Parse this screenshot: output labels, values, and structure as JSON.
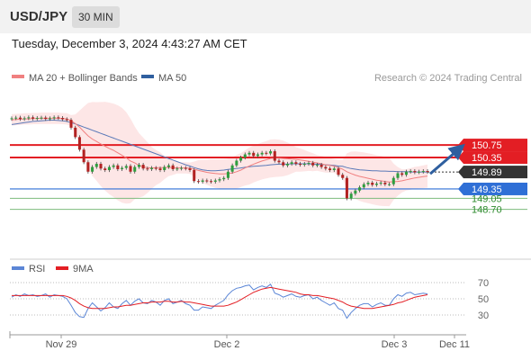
{
  "header": {
    "symbol": "USD/JPY",
    "interval": "30 MIN"
  },
  "datetime": "Tuesday, December 3, 2024 4:43:27 AM CET",
  "legend": {
    "items": [
      {
        "label": "MA 20 + Bollinger Bands",
        "color": "#f08080"
      },
      {
        "label": "MA 50",
        "color": "#2f5f9f"
      }
    ],
    "credit": "Research © 2024 Trading Central"
  },
  "chart_data": [
    {
      "type": "candlestick",
      "symbol": "USD/JPY",
      "x_labels": [
        "Nov 29",
        "Dec 2",
        "Dec 3",
        "Dec 11"
      ],
      "y_range": [
        147.2,
        152.5
      ],
      "levels": [
        {
          "label": "150.75",
          "value": 150.75,
          "kind": "resistance",
          "color": "#e31e24"
        },
        {
          "label": "150.35",
          "value": 150.35,
          "kind": "resistance",
          "color": "#e31e24"
        },
        {
          "label": "149.89",
          "value": 149.89,
          "kind": "last price",
          "color": "#333333"
        },
        {
          "label": "149.35",
          "value": 149.35,
          "kind": "pivot",
          "color": "#2f6fd6"
        },
        {
          "label": "149.05",
          "value": 149.05,
          "kind": "support",
          "color": "#2e8b2e"
        },
        {
          "label": "148.70",
          "value": 148.7,
          "kind": "support",
          "color": "#2e8b2e"
        }
      ],
      "closes": [
        151.6,
        151.62,
        151.58,
        151.6,
        151.63,
        151.59,
        151.61,
        151.62,
        151.58,
        151.6,
        151.63,
        151.61,
        151.57,
        151.55,
        151.3,
        151.0,
        150.6,
        150.2,
        149.9,
        150.05,
        150.15,
        150.0,
        149.95,
        150.05,
        150.1,
        149.98,
        150.02,
        150.08,
        149.9,
        150.05,
        150.12,
        150.0,
        149.98,
        150.02,
        150.0,
        149.95,
        150.05,
        150.1,
        149.98,
        150.0,
        150.02,
        150.0,
        149.95,
        149.6,
        149.58,
        149.62,
        149.6,
        149.58,
        149.62,
        149.66,
        149.7,
        149.9,
        150.1,
        150.25,
        150.35,
        150.45,
        150.5,
        150.4,
        150.45,
        150.5,
        150.48,
        150.55,
        150.25,
        150.2,
        150.1,
        150.15,
        150.2,
        150.15,
        150.12,
        150.15,
        150.18,
        150.1,
        150.12,
        150.05,
        150.0,
        149.95,
        150.0,
        149.8,
        149.7,
        149.05,
        149.2,
        149.3,
        149.4,
        149.5,
        149.55,
        149.48,
        149.52,
        149.55,
        149.5,
        149.5,
        149.7,
        149.85,
        149.8,
        149.9,
        149.92,
        149.88,
        149.9,
        149.92,
        149.89
      ],
      "series": [
        {
          "name": "MA 20 + Bollinger Bands",
          "values": [
            151.55,
            151.56,
            151.57,
            151.58,
            151.58,
            151.59,
            151.59,
            151.6,
            151.6,
            151.6,
            151.6,
            151.6,
            151.59,
            151.58,
            151.52,
            151.43,
            151.32,
            151.18,
            151.04,
            150.94,
            150.86,
            150.78,
            150.71,
            150.64,
            150.58,
            150.5,
            150.42,
            150.34,
            150.24,
            150.18,
            150.1,
            150.05,
            150.03,
            150.02,
            150.03,
            150.03,
            150.03,
            150.04,
            150.03,
            150.02,
            150.02,
            150.02,
            150.01,
            149.98,
            149.94,
            149.91,
            149.88,
            149.86,
            149.84,
            149.83,
            149.83,
            149.84,
            149.86,
            149.9,
            149.95,
            150.02,
            150.08,
            150.14,
            150.19,
            150.24,
            150.28,
            150.32,
            150.33,
            150.33,
            150.32,
            150.31,
            150.3,
            150.29,
            150.27,
            150.25,
            150.23,
            150.2,
            150.18,
            150.15,
            150.12,
            150.1,
            150.08,
            150.03,
            149.98,
            149.9,
            149.84,
            149.79,
            149.75,
            149.72,
            149.69,
            149.66,
            149.63,
            149.61,
            149.59,
            149.57,
            149.58,
            149.59,
            149.61,
            149.64,
            149.67,
            149.7,
            149.72,
            149.74,
            149.76
          ]
        },
        {
          "name": "MA 50",
          "values": [
            151.4,
            151.42,
            151.44,
            151.46,
            151.48,
            151.5,
            151.51,
            151.52,
            151.53,
            151.54,
            151.54,
            151.53,
            151.52,
            151.5,
            151.46,
            151.42,
            151.37,
            151.32,
            151.27,
            151.22,
            151.17,
            151.12,
            151.07,
            151.02,
            150.97,
            150.92,
            150.87,
            150.82,
            150.77,
            150.72,
            150.67,
            150.62,
            150.57,
            150.52,
            150.47,
            150.42,
            150.37,
            150.32,
            150.27,
            150.22,
            150.17,
            150.12,
            150.08,
            150.03,
            149.99,
            149.96,
            149.94,
            149.93,
            149.93,
            149.94,
            149.95,
            149.97,
            149.99,
            150.0,
            150.02,
            150.04,
            150.06,
            150.07,
            150.08,
            150.09,
            150.1,
            150.12,
            150.13,
            150.14,
            150.14,
            150.14,
            150.15,
            150.15,
            150.15,
            150.15,
            150.15,
            150.14,
            150.14,
            150.13,
            150.12,
            150.11,
            150.1,
            150.08,
            150.07,
            150.03,
            150.0,
            149.98,
            149.96,
            149.95,
            149.94,
            149.93,
            149.93,
            149.92,
            149.92,
            149.91,
            149.91,
            149.9,
            149.9,
            149.9,
            149.89,
            149.89,
            149.89,
            149.89,
            149.89
          ]
        }
      ]
    },
    {
      "type": "line",
      "title": "RSI",
      "y_range": [
        10,
        80
      ],
      "y_ticks": [
        70,
        50,
        30
      ],
      "series": [
        {
          "name": "RSI",
          "color": "#5b86d6",
          "values": [
            52,
            55,
            53,
            56,
            54,
            55,
            53,
            54,
            56,
            52,
            55,
            54,
            53,
            50,
            42,
            33,
            28,
            27,
            38,
            45,
            40,
            35,
            39,
            45,
            40,
            38,
            44,
            48,
            42,
            47,
            50,
            45,
            44,
            48,
            46,
            42,
            48,
            50,
            44,
            46,
            48,
            44,
            42,
            36,
            36,
            40,
            39,
            38,
            42,
            45,
            48,
            55,
            60,
            63,
            64,
            66,
            67,
            61,
            64,
            66,
            64,
            68,
            57,
            55,
            52,
            54,
            56,
            53,
            52,
            54,
            55,
            50,
            52,
            48,
            45,
            42,
            45,
            38,
            36,
            26,
            33,
            38,
            42,
            44,
            44,
            40,
            43,
            45,
            42,
            42,
            50,
            55,
            53,
            57,
            58,
            55,
            56,
            57,
            56
          ]
        },
        {
          "name": "9MA",
          "color": "#e31e24",
          "values": [
            54,
            54,
            54,
            54,
            54,
            54,
            54,
            54,
            54,
            54,
            54,
            54,
            54,
            53,
            51,
            48,
            44,
            41,
            39,
            38,
            38,
            38,
            38,
            39,
            40,
            40,
            41,
            42,
            42,
            43,
            44,
            45,
            45,
            46,
            46,
            46,
            47,
            47,
            46,
            46,
            47,
            46,
            46,
            45,
            44,
            43,
            42,
            41,
            41,
            41,
            41,
            42,
            44,
            46,
            49,
            52,
            55,
            58,
            60,
            62,
            63,
            64,
            63,
            62,
            61,
            60,
            59,
            58,
            56,
            55,
            55,
            54,
            54,
            53,
            52,
            51,
            50,
            48,
            46,
            43,
            41,
            40,
            39,
            38,
            38,
            38,
            39,
            40,
            41,
            42,
            43,
            45,
            46,
            48,
            50,
            52,
            53,
            54,
            55
          ]
        }
      ]
    }
  ]
}
